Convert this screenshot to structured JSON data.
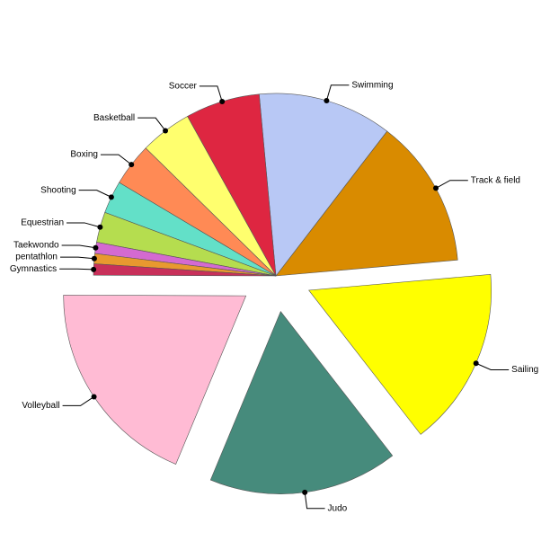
{
  "chart_data": {
    "type": "pie",
    "categories": [
      "Track & field",
      "Swimming",
      "Soccer",
      "Basketball",
      "Boxing",
      "Shooting",
      "Equestrian",
      "Taekwondo",
      "pentathlon",
      "Gymnastics",
      "Volleyball",
      "Judo",
      "Sailing"
    ],
    "values": [
      13.2,
      11.9,
      6.6,
      4.6,
      3.8,
      2.9,
      2.7,
      1.0,
      0.9,
      1.0,
      18.8,
      16.8,
      15.9
    ],
    "colors": [
      "#d98b00",
      "#b8c8f5",
      "#de2641",
      "#ffff6e",
      "#ff8a55",
      "#63e0c8",
      "#b5dd4f",
      "#d46ad0",
      "#e8992f",
      "#c8305a",
      "#ffbbd4",
      "#468b7c",
      "#ffff00"
    ]
  }
}
